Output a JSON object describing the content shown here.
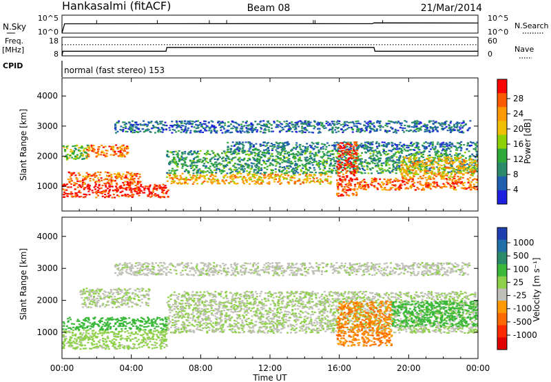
{
  "header": {
    "station": "Hankasalmi (fitACF)",
    "beam": "Beam 08",
    "date": "21/Mar/2014"
  },
  "panels": {
    "nsky": {
      "label": "N.Sky",
      "ticks": [
        "10^5",
        "10^0"
      ]
    },
    "nsearch": {
      "label": "N.Search",
      "ticks": [
        "10^5",
        "10^0"
      ]
    },
    "freq": {
      "label_line1": "Freq.",
      "label_line2": "[MHz]",
      "ticks": [
        "18",
        "8"
      ]
    },
    "nave": {
      "label": "Nave",
      "ticks": [
        "60",
        "0"
      ]
    },
    "cpid": {
      "label": "CPID",
      "value": "normal (fast stereo) 153"
    }
  },
  "power_panel": {
    "ylabel": "Slant Range [km]",
    "colorbar_label": "Power [dB]",
    "colorbar_ticks": [
      "28",
      "24",
      "20",
      "16",
      "12",
      "8",
      "4"
    ],
    "colorbar_colors": [
      "#ff0000",
      "#ff5a00",
      "#ff9900",
      "#f0c000",
      "#8fd000",
      "#2fa83a",
      "#2a8a6a",
      "#1f5fb0",
      "#1f1fe0"
    ]
  },
  "velocity_panel": {
    "ylabel": "Slant Range [km]",
    "colorbar_label": "Velocity [m s⁻¹]",
    "colorbar_ticks": [
      "1000",
      "500",
      "100",
      "25",
      "-25",
      "-100",
      "-500",
      "-1000"
    ],
    "colorbar_colors": [
      "#1f3fb0",
      "#1f6fa8",
      "#2a8a6a",
      "#3ab83a",
      "#8fd04a",
      "#c0c0b8",
      "#ff9900",
      "#ff6a00",
      "#ff2a00",
      "#e00000"
    ]
  },
  "xaxis": {
    "label": "Time UT",
    "ticks": [
      "00:00",
      "04:00",
      "08:00",
      "12:00",
      "16:00",
      "20:00",
      "00:00"
    ]
  },
  "chart_data": [
    {
      "type": "line",
      "title": "N.Sky / N.Search",
      "x_unit": "hours UT",
      "ylog": true,
      "ylim": [
        "10^0",
        "10^5"
      ],
      "series": [
        {
          "name": "N.Sky",
          "x": [
            0,
            0.15,
            6,
            12,
            17.9,
            18,
            24
          ],
          "y": [
            1,
            400,
            420,
            430,
            410,
            700,
            650
          ]
        }
      ]
    },
    {
      "type": "line",
      "title": "Freq. / Nave",
      "x_unit": "hours UT",
      "y_left": "Freq. [MHz]",
      "y_right": "Nave",
      "series": [
        {
          "name": "Freq.",
          "x": [
            0,
            0.05,
            6,
            6.05,
            18,
            18.05,
            24
          ],
          "y": [
            8,
            10.5,
            10.5,
            12.5,
            12.5,
            10.5,
            10.5
          ]
        },
        {
          "name": "Nave",
          "x": [
            0,
            24
          ],
          "y": [
            36,
            36
          ]
        }
      ]
    },
    {
      "type": "heatmap",
      "title": "Power [dB]",
      "x_range_hours": [
        0,
        24
      ],
      "ylim_km": [
        180,
        4600
      ],
      "y_ticks": [
        1000,
        2000,
        3000,
        4000
      ],
      "clim": [
        0,
        30
      ],
      "regions": [
        {
          "t0": 0,
          "t1": 6.1,
          "r0": 650,
          "r1": 1100,
          "value": 28
        },
        {
          "t0": 0.3,
          "t1": 4.5,
          "r0": 1100,
          "r1": 1500,
          "value": 24
        },
        {
          "t0": 1.2,
          "t1": 3.8,
          "r0": 2000,
          "r1": 2400,
          "value": 23
        },
        {
          "t0": 0,
          "t1": 1.5,
          "r0": 1900,
          "r1": 2400,
          "value": 14
        },
        {
          "t0": 6,
          "t1": 15.5,
          "r0": 1100,
          "r1": 1450,
          "value": 20
        },
        {
          "t0": 6,
          "t1": 24,
          "r0": 1450,
          "r1": 2200,
          "value": 10
        },
        {
          "t0": 9.5,
          "t1": 24,
          "r0": 2200,
          "r1": 2500,
          "value": 7
        },
        {
          "t0": 15.8,
          "t1": 17,
          "r0": 700,
          "r1": 2500,
          "value": 26
        },
        {
          "t0": 17,
          "t1": 24,
          "r0": 900,
          "r1": 1300,
          "value": 24
        },
        {
          "t0": 19.5,
          "t1": 24,
          "r0": 1300,
          "r1": 2000,
          "value": 20
        },
        {
          "t0": 3,
          "t1": 23.5,
          "r0": 2800,
          "r1": 3200,
          "value": 6
        }
      ]
    },
    {
      "type": "heatmap",
      "title": "Velocity [m s⁻¹]",
      "x_range_hours": [
        0,
        24
      ],
      "ylim_km": [
        180,
        4600
      ],
      "y_ticks": [
        1000,
        2000,
        3000,
        4000
      ],
      "clim": [
        -1000,
        1000
      ],
      "regions": [
        {
          "t0": 0,
          "t1": 6,
          "r0": 500,
          "r1": 1100,
          "value": 80
        },
        {
          "t0": 0,
          "t1": 6,
          "r0": 1100,
          "r1": 1500,
          "value": 300
        },
        {
          "t0": 1,
          "t1": 5,
          "r0": 1800,
          "r1": 2400,
          "value": 0
        },
        {
          "t0": 6,
          "t1": 24,
          "r0": 1000,
          "r1": 2300,
          "value": 0
        },
        {
          "t0": 15.8,
          "t1": 19,
          "r0": 600,
          "r1": 2000,
          "value": -400
        },
        {
          "t0": 19,
          "t1": 24,
          "r0": 1200,
          "r1": 2000,
          "value": 300
        },
        {
          "t0": 3,
          "t1": 23.5,
          "r0": 2800,
          "r1": 3200,
          "value": -50
        }
      ]
    }
  ]
}
